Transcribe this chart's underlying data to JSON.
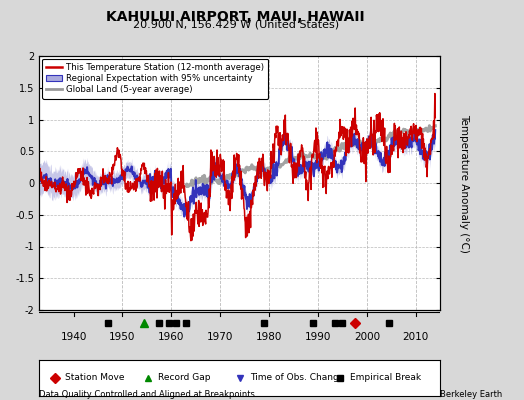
{
  "title": "KAHULUI AIRPORT, MAUI, HAWAII",
  "subtitle": "20.900 N, 156.429 W (United States)",
  "ylabel": "Temperature Anomaly (°C)",
  "xlabel_left": "Data Quality Controlled and Aligned at Breakpoints",
  "xlabel_right": "Berkeley Earth",
  "ylim": [
    -2,
    2
  ],
  "xlim": [
    1933,
    2015
  ],
  "bg_color": "#d8d8d8",
  "plot_bg_color": "#ffffff",
  "grid_color": "#bbbbbb",
  "xticks": [
    1940,
    1950,
    1960,
    1970,
    1980,
    1990,
    2000,
    2010
  ],
  "yticks": [
    -2,
    -1.5,
    -1,
    -0.5,
    0,
    0.5,
    1,
    1.5,
    2
  ],
  "vgrid_years": [
    1950,
    1960,
    1970,
    1980,
    1990,
    2000,
    2010
  ],
  "station_move": [
    1997.5
  ],
  "record_gap": [
    1954.5
  ],
  "obs_change": [],
  "empirical_break": [
    1947,
    1957.5,
    1959.5,
    1961,
    1963,
    1979,
    1989,
    1993.5,
    1995,
    2004.5
  ],
  "legend_labels": [
    "This Temperature Station (12-month average)",
    "Regional Expectation with 95% uncertainty",
    "Global Land (5-year average)"
  ],
  "line_colors": [
    "#cc0000",
    "#3333bb",
    "#999999"
  ],
  "uncertainty_color": "#aaaadd"
}
